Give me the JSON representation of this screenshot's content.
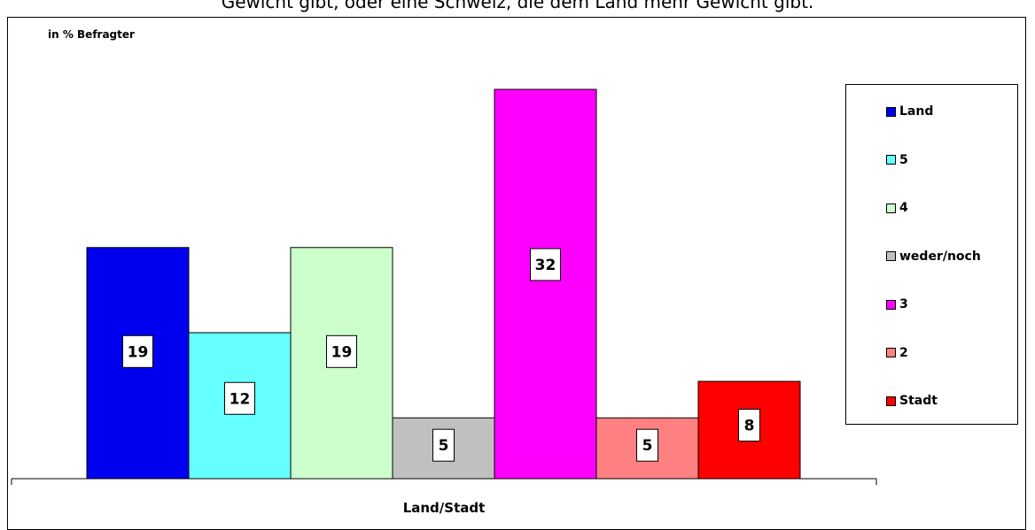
{
  "header": {
    "title_partial": "Gewicht gibt, oder eine Schweiz, die dem Land mehr Gewicht gibt."
  },
  "chart_data": {
    "type": "bar",
    "ylabel": "in % Befragter",
    "xlabel": "Land/Stadt",
    "categories": [
      "Land",
      "5",
      "4",
      "weder/noch",
      "3",
      "2",
      "Stadt"
    ],
    "values": [
      19,
      12,
      19,
      5,
      32,
      5,
      8
    ],
    "colors": [
      "#0000ee",
      "#66ffff",
      "#ccffcc",
      "#c0c0c0",
      "#ff00ff",
      "#ff8080",
      "#ff0000"
    ],
    "ylim": [
      0,
      32
    ],
    "grid": false,
    "legend_position": "right"
  }
}
